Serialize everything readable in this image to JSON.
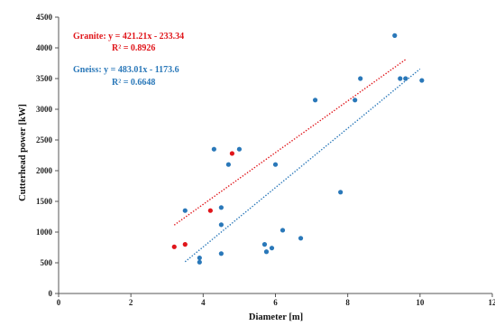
{
  "chart_data": {
    "type": "scatter",
    "xlabel": "Diameter [m]",
    "ylabel": "Cutterhead power [kW]",
    "xlim": [
      0,
      12
    ],
    "ylim": [
      0,
      4500
    ],
    "x_ticks": [
      0,
      2,
      4,
      6,
      8,
      10,
      12
    ],
    "x_tick_labels": [
      "0",
      "2",
      "4",
      "6",
      "8",
      "10",
      "12"
    ],
    "y_ticks": [
      0,
      500,
      1000,
      1500,
      2000,
      2500,
      3000,
      3500,
      4000,
      4500
    ],
    "y_tick_labels": [
      "0",
      "500",
      "1000",
      "1500",
      "2000",
      "2500",
      "3000",
      "3500",
      "4000",
      "4500"
    ],
    "grid": false,
    "series": [
      {
        "name": "Granite",
        "color": "#e0161b",
        "points": [
          {
            "x": 3.2,
            "y": 760
          },
          {
            "x": 3.5,
            "y": 800
          },
          {
            "x": 4.2,
            "y": 1350
          },
          {
            "x": 4.8,
            "y": 2280
          }
        ],
        "trendline": {
          "slope": 421.21,
          "intercept": -233.34,
          "x_range": [
            3.2,
            9.6
          ],
          "equation": "Granite: y = 421.21x - 233.34",
          "r_squared": "R² = 0.8926"
        }
      },
      {
        "name": "Gneiss",
        "color": "#2a78b9",
        "points": [
          {
            "x": 3.5,
            "y": 1350
          },
          {
            "x": 3.9,
            "y": 580
          },
          {
            "x": 3.9,
            "y": 510
          },
          {
            "x": 4.3,
            "y": 2350
          },
          {
            "x": 4.5,
            "y": 1400
          },
          {
            "x": 4.5,
            "y": 1120
          },
          {
            "x": 4.5,
            "y": 650
          },
          {
            "x": 4.7,
            "y": 2100
          },
          {
            "x": 5.0,
            "y": 2350
          },
          {
            "x": 5.7,
            "y": 800
          },
          {
            "x": 5.75,
            "y": 680
          },
          {
            "x": 5.9,
            "y": 740
          },
          {
            "x": 6.0,
            "y": 2100
          },
          {
            "x": 6.2,
            "y": 1030
          },
          {
            "x": 6.7,
            "y": 900
          },
          {
            "x": 7.1,
            "y": 3150
          },
          {
            "x": 7.8,
            "y": 1650
          },
          {
            "x": 8.2,
            "y": 3150
          },
          {
            "x": 8.35,
            "y": 3500
          },
          {
            "x": 9.3,
            "y": 4200
          },
          {
            "x": 9.45,
            "y": 3500
          },
          {
            "x": 9.6,
            "y": 3500
          },
          {
            "x": 10.05,
            "y": 3470
          }
        ],
        "trendline": {
          "slope": 483.01,
          "intercept": -1173.6,
          "x_range": [
            3.5,
            10.0
          ],
          "equation": "Gneiss: y = 483.01x - 1173.6",
          "r_squared": "R² = 0.6648"
        }
      }
    ]
  }
}
